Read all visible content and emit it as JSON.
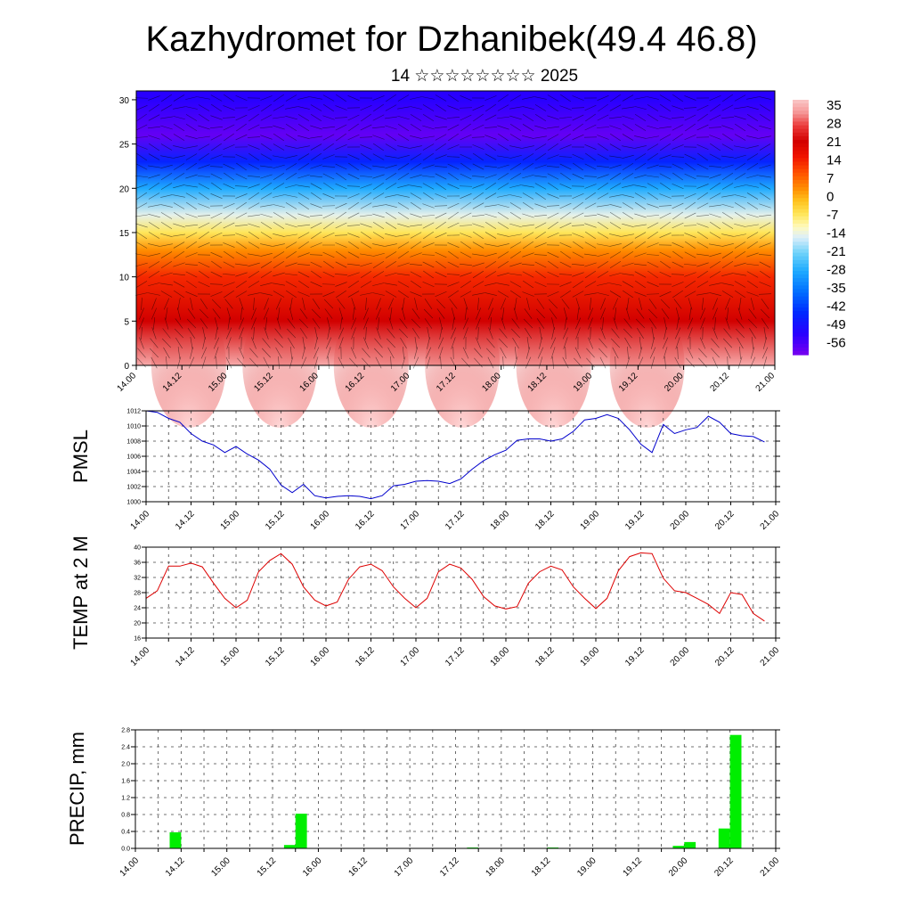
{
  "title": "Kazhydromet for Dzhanibek(49.4 46.8)",
  "subtitle": "14 ☆☆☆☆☆☆☆☆ 2025",
  "time_labels": [
    "14.00",
    "14.12",
    "15.00",
    "15.12",
    "16.00",
    "16.12",
    "17.00",
    "17.12",
    "18.00",
    "18.12",
    "19.00",
    "19.12",
    "20.00",
    "20.12",
    "21.00"
  ],
  "colors": {
    "pmsl_line": "#0000cc",
    "temp_line": "#dd0000",
    "precip_bar": "#00ee00"
  },
  "chart_data": [
    {
      "type": "heatmap",
      "name": "cross-section",
      "y_ticks": [
        "0",
        "5",
        "10",
        "15",
        "20",
        "25",
        "30"
      ],
      "ylim": [
        0,
        31
      ],
      "colorbar_labels": [
        "35",
        "28",
        "21",
        "14",
        "7",
        "0",
        "-7",
        "-14",
        "-21",
        "-28",
        "-35",
        "-42",
        "-49",
        "-56"
      ],
      "colorbar_range": [
        -60,
        38
      ],
      "layer_values": [
        {
          "level": 0,
          "value": 35
        },
        {
          "level": 5,
          "value": 22
        },
        {
          "level": 10,
          "value": 14
        },
        {
          "level": 13,
          "value": 4
        },
        {
          "level": 15,
          "value": -6
        },
        {
          "level": 17,
          "value": -14
        },
        {
          "level": 20,
          "value": -28
        },
        {
          "level": 23,
          "value": -45
        },
        {
          "level": 26,
          "value": -58
        },
        {
          "level": 30,
          "value": -52
        }
      ]
    },
    {
      "type": "line",
      "ylabel": "PMSL",
      "ylim": [
        1000,
        1012
      ],
      "y_ticks": [
        "1000",
        "1002",
        "1004",
        "1006",
        "1008",
        "1010",
        "1012"
      ],
      "x": [
        0,
        3,
        6,
        9,
        12,
        15,
        18,
        21,
        24,
        27,
        30,
        33,
        36,
        39,
        42,
        45,
        48,
        51,
        54,
        57,
        60,
        63,
        66,
        69,
        72,
        75,
        78,
        81,
        84,
        87,
        90,
        93,
        96,
        99,
        102,
        105,
        108,
        111,
        114,
        117,
        120,
        123,
        126,
        129,
        132,
        135,
        138,
        141,
        144,
        147,
        150,
        153,
        156,
        159,
        162,
        165
      ],
      "values": [
        1012,
        1011.8,
        1011,
        1010.5,
        1009,
        1008,
        1007.5,
        1006.5,
        1007.3,
        1006.3,
        1005.5,
        1004.3,
        1002.2,
        1001.2,
        1002.3,
        1000.8,
        1000.5,
        1000.7,
        1000.8,
        1000.7,
        1000.4,
        1000.8,
        1002.1,
        1002.3,
        1002.7,
        1002.8,
        1002.7,
        1002.4,
        1003,
        1004.3,
        1005.4,
        1006.2,
        1006.8,
        1008.1,
        1008.3,
        1008.3,
        1008,
        1008.3,
        1009.3,
        1010.8,
        1011,
        1011.5,
        1011,
        1009.5,
        1007.6,
        1006.5,
        1010.2,
        1009,
        1009.5,
        1009.8,
        1011.3,
        1010.5,
        1009,
        1008.7,
        1008.6,
        1007.9
      ]
    },
    {
      "type": "line",
      "ylabel": "TEMP at 2 M",
      "ylim": [
        16,
        40
      ],
      "y_ticks": [
        "16",
        "20",
        "24",
        "28",
        "32",
        "36",
        "40"
      ],
      "x": [
        0,
        3,
        6,
        9,
        12,
        15,
        18,
        21,
        24,
        27,
        30,
        33,
        36,
        39,
        42,
        45,
        48,
        51,
        54,
        57,
        60,
        63,
        66,
        69,
        72,
        75,
        78,
        81,
        84,
        87,
        90,
        93,
        96,
        99,
        102,
        105,
        108,
        111,
        114,
        117,
        120,
        123,
        126,
        129,
        132,
        135,
        138,
        141,
        144,
        147,
        150,
        153,
        156,
        159,
        162,
        165
      ],
      "values": [
        26.5,
        28.5,
        35,
        35,
        35.8,
        34.8,
        30.5,
        26.5,
        24,
        26,
        33.5,
        36.5,
        38.3,
        35.5,
        29.5,
        26,
        24.5,
        25.5,
        31.5,
        34.8,
        35.5,
        33.8,
        29.5,
        26.5,
        24,
        26.5,
        33.5,
        35.5,
        34.5,
        31.5,
        27,
        24.5,
        23.7,
        24.3,
        30.5,
        33.5,
        35,
        34,
        29.5,
        26.5,
        23.8,
        26.5,
        33.8,
        37.5,
        38.5,
        38.3,
        31.8,
        28.5,
        28,
        26.5,
        24.9,
        22.5,
        28,
        27.5,
        22.5,
        20.5
      ]
    },
    {
      "type": "bar",
      "ylabel": "PRECIP, mm",
      "ylim": [
        0,
        2.8
      ],
      "y_ticks": [
        "0.0",
        "0.4",
        "0.8",
        "1.2",
        "1.6",
        "2.0",
        "2.4",
        "2.8"
      ],
      "bars": [
        {
          "x": 9,
          "value": 0.38
        },
        {
          "x": 39,
          "value": 0.08
        },
        {
          "x": 42,
          "value": 0.82
        },
        {
          "x": 87,
          "value": 0.02
        },
        {
          "x": 108,
          "value": 0.02
        },
        {
          "x": 141,
          "value": 0.06
        },
        {
          "x": 144,
          "value": 0.15
        },
        {
          "x": 153,
          "value": 0.47
        },
        {
          "x": 156,
          "value": 2.68
        }
      ]
    }
  ]
}
